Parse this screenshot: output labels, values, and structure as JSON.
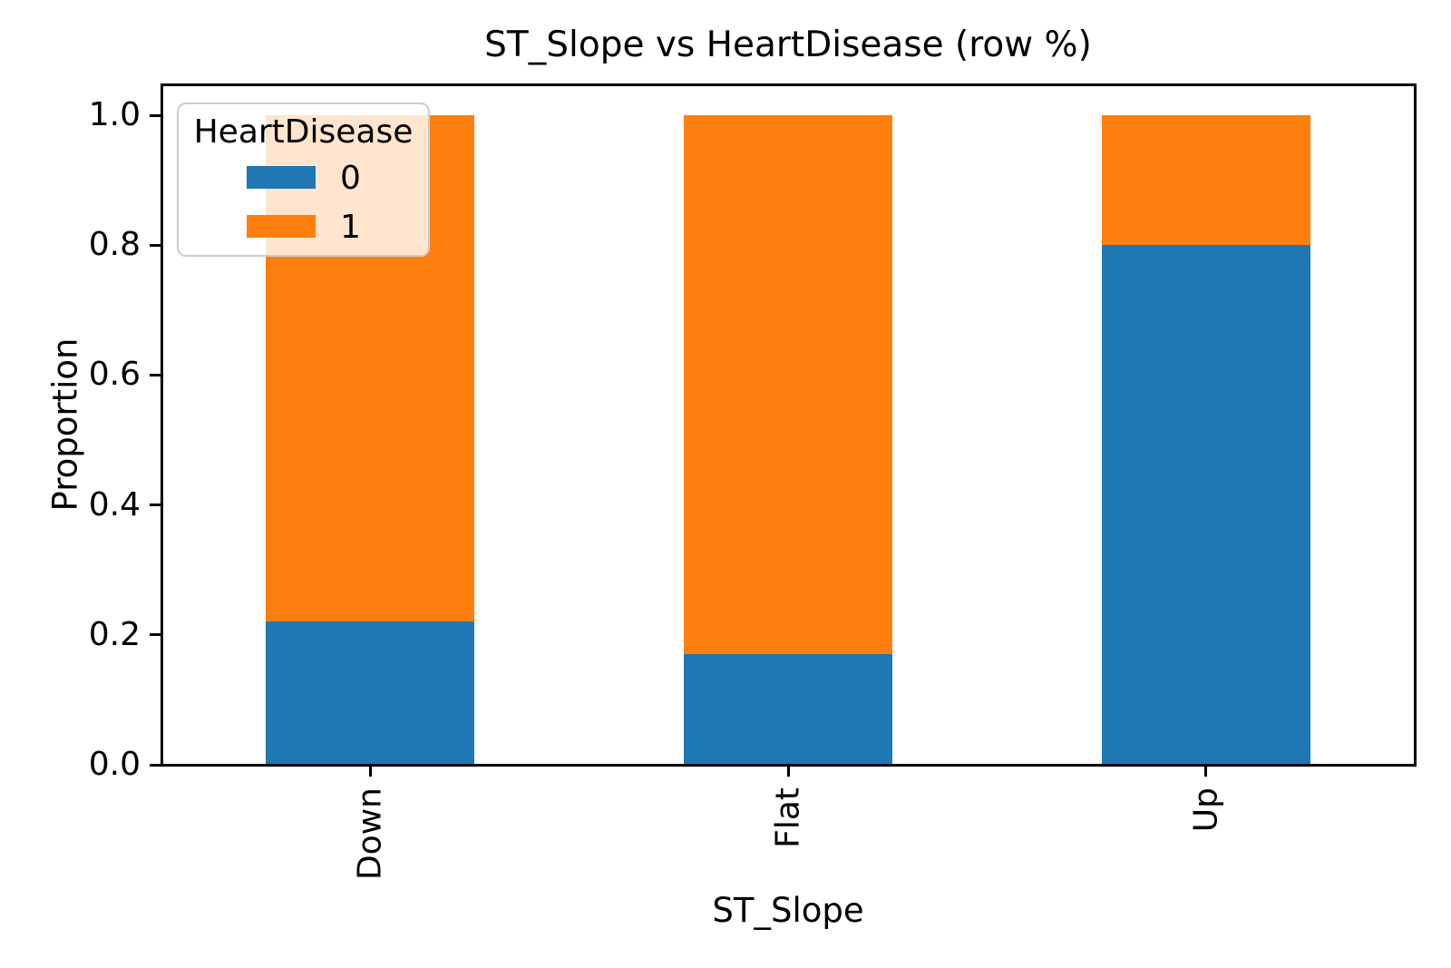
{
  "chart_data": {
    "type": "bar",
    "stacked": true,
    "title": "ST_Slope vs HeartDisease (row %)",
    "xlabel": "ST_Slope",
    "ylabel": "Proportion",
    "categories": [
      "Down",
      "Flat",
      "Up"
    ],
    "series": [
      {
        "name": "0",
        "color": "#1f77b4",
        "values": [
          0.22,
          0.17,
          0.8
        ]
      },
      {
        "name": "1",
        "color": "#ff7f0e",
        "values": [
          0.78,
          0.83,
          0.2
        ]
      }
    ],
    "ytick_labels": [
      "0.0",
      "0.2",
      "0.4",
      "0.6",
      "0.8",
      "1.0"
    ],
    "ytick_values": [
      0.0,
      0.2,
      0.4,
      0.6,
      0.8,
      1.0
    ],
    "ylim": [
      0.0,
      1.047
    ],
    "bar_width_fraction_of_slot": 0.5,
    "grid": false,
    "legend": {
      "title": "HeartDisease",
      "position": "upper left",
      "entries": [
        "0",
        "1"
      ]
    }
  },
  "colors": {
    "background": "#ffffff",
    "axis": "#000000",
    "legend_border": "#cccccc",
    "series_0": "#1f77b4",
    "series_1": "#ff7f0e"
  }
}
